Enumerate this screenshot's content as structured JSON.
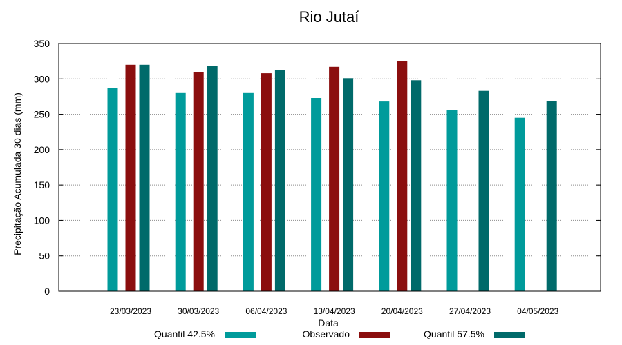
{
  "chart_data": {
    "type": "bar",
    "title": "Rio Jutaí",
    "xlabel": "Data",
    "ylabel": "Precipitação Acumulada 30 dias (mm)",
    "ylim": [
      0,
      350
    ],
    "yticks": [
      0,
      50,
      100,
      150,
      200,
      250,
      300,
      350
    ],
    "grid": true,
    "legend_position": "bottom",
    "categories": [
      "23/03/2023",
      "30/03/2023",
      "06/04/2023",
      "13/04/2023",
      "20/04/2023",
      "27/04/2023",
      "04/05/2023"
    ],
    "series": [
      {
        "name": "Quantil 42.5%",
        "color": "#009b9b",
        "values": [
          287,
          280,
          280,
          273,
          268,
          256,
          245
        ]
      },
      {
        "name": "Observado",
        "color": "#8b0e0e",
        "values": [
          320,
          310,
          308,
          317,
          325,
          null,
          null
        ]
      },
      {
        "name": "Quantil 57.5%",
        "color": "#006a6a",
        "values": [
          320,
          318,
          312,
          301,
          298,
          283,
          269
        ]
      }
    ]
  }
}
